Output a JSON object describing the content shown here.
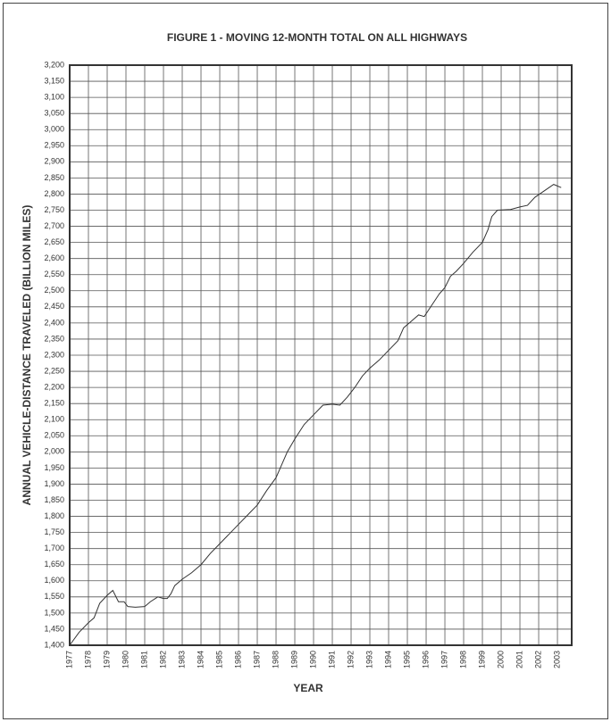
{
  "chart_data": {
    "type": "line",
    "title": "FIGURE 1 - MOVING 12-MONTH TOTAL ON ALL HIGHWAYS",
    "x_label": "YEAR",
    "y_label": "ANNUAL VEHICLE-DISTANCE TRAVELED (BILLION MILES)",
    "color": "#333333",
    "grid": true,
    "xlim": [
      1977,
      2003.76
    ],
    "ylim": [
      1400,
      3200
    ],
    "xticks": [
      1977,
      1978,
      1979,
      1980,
      1981,
      1982,
      1983,
      1984,
      1985,
      1986,
      1987,
      1988,
      1989,
      1990,
      1991,
      1992,
      1993,
      1994,
      1995,
      1996,
      1997,
      1998,
      1999,
      2000,
      2001,
      2002,
      2003
    ],
    "yticks": [
      {
        "value": 1400,
        "label": "1,400"
      },
      {
        "value": 1450,
        "label": "1,450"
      },
      {
        "value": 1500,
        "label": "1,500"
      },
      {
        "value": 1550,
        "label": "1,550"
      },
      {
        "value": 1600,
        "label": "1,600"
      },
      {
        "value": 1650,
        "label": "1,650"
      },
      {
        "value": 1700,
        "label": "1,700"
      },
      {
        "value": 1750,
        "label": "1,750"
      },
      {
        "value": 1800,
        "label": "1,800"
      },
      {
        "value": 1850,
        "label": "1,850"
      },
      {
        "value": 1900,
        "label": "1,900"
      },
      {
        "value": 1950,
        "label": "1,950"
      },
      {
        "value": 2000,
        "label": "2,000"
      },
      {
        "value": 2050,
        "label": "2,050"
      },
      {
        "value": 2100,
        "label": "2,100"
      },
      {
        "value": 2150,
        "label": "2,150"
      },
      {
        "value": 2200,
        "label": "2,200"
      },
      {
        "value": 2250,
        "label": "2,250"
      },
      {
        "value": 2300,
        "label": "2,300"
      },
      {
        "value": 2350,
        "label": "2,350"
      },
      {
        "value": 2400,
        "label": "2,400"
      },
      {
        "value": 2450,
        "label": "2,450"
      },
      {
        "value": 2500,
        "label": "2,500"
      },
      {
        "value": 2550,
        "label": "2,550"
      },
      {
        "value": 2600,
        "label": "2,600"
      },
      {
        "value": 2650,
        "label": "2,650"
      },
      {
        "value": 2700,
        "label": "2,700"
      },
      {
        "value": 2750,
        "label": "2,750"
      },
      {
        "value": 2800,
        "label": "2,800"
      },
      {
        "value": 2850,
        "label": "2,850"
      },
      {
        "value": 2900,
        "label": "2,900"
      },
      {
        "value": 2950,
        "label": "2,950"
      },
      {
        "value": 3000,
        "label": "3,000"
      },
      {
        "value": 3050,
        "label": "3,050"
      },
      {
        "value": 3100,
        "label": "3,100"
      },
      {
        "value": 3150,
        "label": "3,150"
      },
      {
        "value": 3200,
        "label": "3,200"
      }
    ],
    "x": [
      1977.0,
      1977.5,
      1978.0,
      1978.3,
      1978.6,
      1979.0,
      1979.3,
      1979.6,
      1979.9,
      1980.1,
      1980.5,
      1981.0,
      1981.3,
      1981.7,
      1982.0,
      1982.2,
      1982.4,
      1982.6,
      1983.0,
      1983.5,
      1984.0,
      1984.5,
      1985.0,
      1985.5,
      1986.0,
      1986.5,
      1987.0,
      1987.5,
      1988.0,
      1988.3,
      1988.6,
      1989.0,
      1989.5,
      1990.0,
      1990.5,
      1991.0,
      1991.4,
      1991.8,
      1992.2,
      1992.6,
      1993.0,
      1993.5,
      1994.0,
      1994.5,
      1994.8,
      1995.2,
      1995.6,
      1995.9,
      1996.3,
      1996.7,
      1997.0,
      1997.3,
      1997.6,
      1998.0,
      1998.5,
      1999.0,
      1999.3,
      1999.5,
      1999.8,
      2000.5,
      2001.0,
      2001.4,
      2001.8,
      2002.3,
      2002.8,
      2003.2
    ],
    "values": [
      1400,
      1440,
      1470,
      1485,
      1530,
      1555,
      1570,
      1535,
      1535,
      1520,
      1518,
      1520,
      1535,
      1550,
      1545,
      1545,
      1560,
      1585,
      1605,
      1625,
      1650,
      1685,
      1715,
      1745,
      1775,
      1805,
      1835,
      1880,
      1920,
      1960,
      2000,
      2040,
      2085,
      2115,
      2145,
      2148,
      2145,
      2170,
      2200,
      2235,
      2260,
      2285,
      2315,
      2345,
      2385,
      2405,
      2425,
      2420,
      2455,
      2490,
      2510,
      2545,
      2560,
      2585,
      2620,
      2650,
      2690,
      2730,
      2750,
      2752,
      2760,
      2765,
      2790,
      2810,
      2830,
      2820
    ]
  }
}
